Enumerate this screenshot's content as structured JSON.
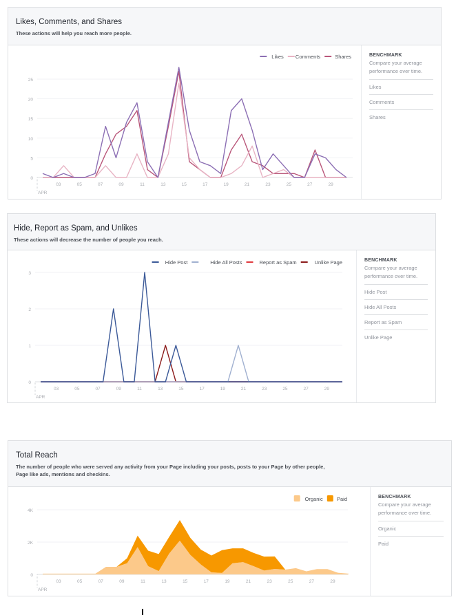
{
  "panels": [
    {
      "title": "Likes, Comments, and Shares",
      "subtitle": "These actions will help you reach more people.",
      "benchmark": {
        "heading": "BENCHMARK",
        "description": "Compare your average performance over time.",
        "items": [
          "Likes",
          "Comments",
          "Shares"
        ]
      }
    },
    {
      "title": "Hide, Report as Spam, and Unlikes",
      "subtitle": "These actions will decrease the number of people you reach.",
      "benchmark": {
        "heading": "BENCHMARK",
        "description": "Compare your average performance over time.",
        "items": [
          "Hide Post",
          "Hide All Posts",
          "Report as Spam",
          "Unlike Page"
        ]
      }
    },
    {
      "title": "Total Reach",
      "subtitle": "The number of people who were served any activity from your Page including your posts, posts to your Page by other people, Page like ads, mentions and checkins.",
      "benchmark": {
        "heading": "BENCHMARK",
        "description": "Compare your average performance over time.",
        "items": [
          "Organic",
          "Paid"
        ]
      }
    }
  ],
  "chart_data": [
    {
      "type": "line",
      "x_label_month": "APR",
      "x": [
        1,
        2,
        3,
        4,
        5,
        6,
        7,
        8,
        9,
        10,
        11,
        12,
        13,
        14,
        15,
        16,
        17,
        18,
        19,
        20,
        21,
        22,
        23,
        24,
        25,
        26,
        27,
        28,
        29,
        30
      ],
      "x_tick_labels": [
        "03",
        "05",
        "07",
        "09",
        "11",
        "13",
        "15",
        "17",
        "19",
        "21",
        "23",
        "25",
        "27",
        "29"
      ],
      "y_ticks": [
        0,
        5,
        10,
        15,
        20,
        25
      ],
      "y_tick_labels": [
        "0",
        "5",
        "10",
        "15",
        "20",
        "25"
      ],
      "ylim": [
        0,
        25
      ],
      "grid": true,
      "legend_position": "top-right",
      "series": [
        {
          "name": "Likes",
          "color": "#8c6fb4",
          "values": [
            1,
            0,
            1,
            0,
            0,
            1,
            13,
            5,
            14,
            19,
            4,
            0,
            14,
            28,
            12,
            4,
            3,
            1,
            17,
            20,
            12,
            2,
            6,
            3,
            0,
            0,
            6,
            5,
            2,
            0
          ]
        },
        {
          "name": "Comments",
          "color": "#e8b4c4",
          "values": [
            0,
            0,
            3,
            0,
            0,
            0,
            3,
            0,
            0,
            6,
            0,
            0,
            6,
            24,
            5,
            2,
            0,
            0,
            1,
            3,
            8,
            0,
            1,
            2,
            0,
            0,
            0,
            0,
            0,
            0
          ]
        },
        {
          "name": "Shares",
          "color": "#b9577a",
          "values": [
            0,
            0,
            0,
            0,
            0,
            0,
            6,
            11,
            13,
            17,
            2,
            0,
            13,
            27,
            4,
            2,
            0,
            0,
            7,
            11,
            4,
            3,
            1,
            1,
            1,
            0,
            7,
            0,
            0,
            0
          ]
        }
      ]
    },
    {
      "type": "line",
      "x_label_month": "APR",
      "x": [
        1,
        2,
        3,
        4,
        5,
        6,
        7,
        8,
        9,
        10,
        11,
        12,
        13,
        14,
        15,
        16,
        17,
        18,
        19,
        20,
        21,
        22,
        23,
        24,
        25,
        26,
        27,
        28,
        29,
        30
      ],
      "x_tick_labels": [
        "03",
        "05",
        "07",
        "09",
        "11",
        "13",
        "15",
        "17",
        "19",
        "21",
        "23",
        "25",
        "27",
        "29"
      ],
      "y_ticks": [
        0,
        1,
        2,
        3
      ],
      "y_tick_labels": [
        "0",
        "1",
        "2",
        "3"
      ],
      "ylim": [
        0,
        3
      ],
      "grid": true,
      "legend_position": "top-right",
      "series": [
        {
          "name": "Hide Post",
          "color": "#3b5998",
          "values": [
            0,
            0,
            0,
            0,
            0,
            0,
            0,
            2,
            0,
            0,
            3,
            0,
            0,
            1,
            0,
            0,
            0,
            0,
            0,
            0,
            0,
            0,
            0,
            0,
            0,
            0,
            0,
            0,
            0,
            0
          ]
        },
        {
          "name": "Hide All Posts",
          "color": "#a0b0d0",
          "values": [
            0,
            0,
            0,
            0,
            0,
            0,
            0,
            0,
            0,
            0,
            0,
            0,
            0,
            0,
            0,
            0,
            0,
            0,
            0,
            1,
            0,
            0,
            0,
            0,
            0,
            0,
            0,
            0,
            0,
            0
          ]
        },
        {
          "name": "Report as Spam",
          "color": "#e0393e",
          "values": [
            0,
            0,
            0,
            0,
            0,
            0,
            0,
            0,
            0,
            0,
            0,
            0,
            0,
            0,
            0,
            0,
            0,
            0,
            0,
            0,
            0,
            0,
            0,
            0,
            0,
            0,
            0,
            0,
            0,
            0
          ]
        },
        {
          "name": "Unlike Page",
          "color": "#8b1a1a",
          "values": [
            0,
            0,
            0,
            0,
            0,
            0,
            0,
            0,
            0,
            0,
            0,
            0,
            1,
            0,
            0,
            0,
            0,
            0,
            0,
            0,
            0,
            0,
            0,
            0,
            0,
            0,
            0,
            0,
            0,
            0
          ]
        }
      ]
    },
    {
      "type": "area",
      "stacked": true,
      "x_label_month": "APR",
      "x": [
        1,
        2,
        3,
        4,
        5,
        6,
        7,
        8,
        9,
        10,
        11,
        12,
        13,
        14,
        15,
        16,
        17,
        18,
        19,
        20,
        21,
        22,
        23,
        24,
        25,
        26,
        27,
        28,
        29,
        30
      ],
      "x_tick_labels": [
        "03",
        "05",
        "07",
        "09",
        "11",
        "13",
        "15",
        "17",
        "19",
        "21",
        "23",
        "25",
        "27",
        "29"
      ],
      "y_ticks": [
        0,
        2000,
        4000
      ],
      "y_tick_labels": [
        "0",
        "2K",
        "4K"
      ],
      "ylim": [
        0,
        4000
      ],
      "grid": true,
      "legend_position": "top-right",
      "series": [
        {
          "name": "Organic",
          "color": "#fcc98a",
          "values": [
            50,
            50,
            50,
            50,
            50,
            50,
            470,
            470,
            690,
            1690,
            510,
            210,
            1300,
            2090,
            1210,
            610,
            130,
            90,
            690,
            760,
            510,
            240,
            340,
            300,
            390,
            190,
            330,
            330,
            100,
            50
          ]
        },
        {
          "name": "Paid",
          "color": "#f79800",
          "values": [
            0,
            0,
            0,
            0,
            0,
            0,
            0,
            0,
            310,
            710,
            960,
            1050,
            1030,
            1270,
            1050,
            920,
            1040,
            1410,
            920,
            850,
            820,
            860,
            770,
            0,
            0,
            0,
            0,
            0,
            0,
            0
          ]
        }
      ]
    }
  ]
}
